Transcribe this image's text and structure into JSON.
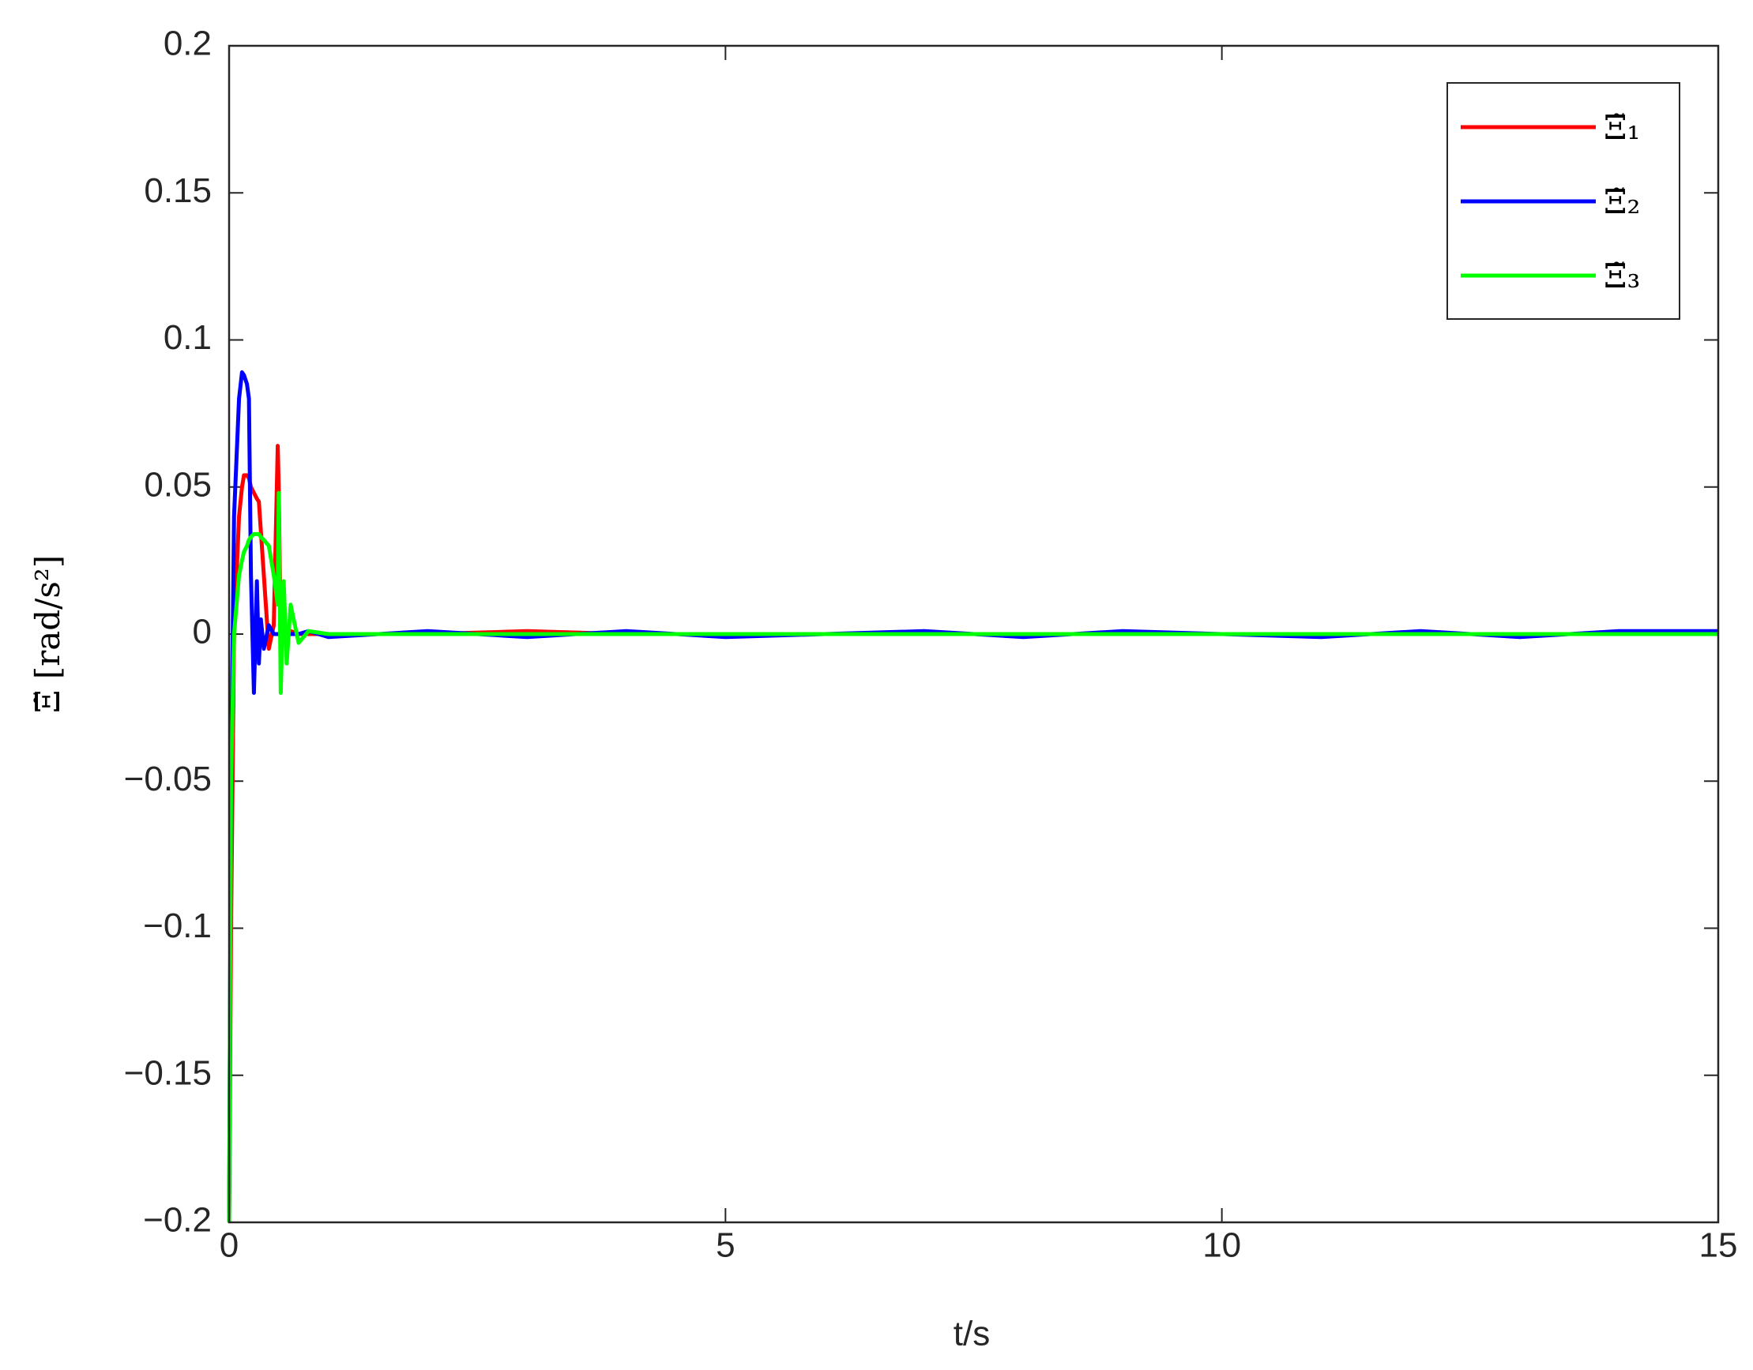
{
  "chart_data": {
    "type": "line",
    "xlabel": "t/s",
    "ylabel": "Ξ̃ [rad/s²]",
    "x": [
      0,
      0.02,
      0.05,
      0.1,
      0.13,
      0.15,
      0.18,
      0.2,
      0.22,
      0.25,
      0.28,
      0.3,
      0.32,
      0.35,
      0.4,
      0.45,
      0.49,
      0.5,
      0.52,
      0.55,
      0.58,
      0.62,
      0.7,
      0.8,
      1,
      2,
      3,
      4,
      5,
      6,
      7,
      8,
      9,
      10,
      11,
      12,
      13,
      14,
      15
    ],
    "series": [
      {
        "name": "Ξ̃₁",
        "color": "#ff0000",
        "values": [
          -0.2,
          -0.1,
          0,
          0.04,
          0.05,
          0.054,
          0.054,
          0.053,
          0.05,
          0.048,
          0.046,
          0.045,
          0.035,
          0.02,
          -0.005,
          0.003,
          0.064,
          0.05,
          0,
          0.002,
          -0.001,
          0.001,
          0,
          0,
          0,
          0,
          0.001,
          0,
          0,
          0,
          0,
          0,
          0,
          0,
          0,
          0,
          0,
          0,
          0
        ]
      },
      {
        "name": "Ξ̃₂",
        "color": "#0000ff",
        "values": [
          -0.2,
          -0.05,
          0.04,
          0.08,
          0.089,
          0.088,
          0.085,
          0.08,
          0.02,
          -0.02,
          0.018,
          -0.01,
          0.005,
          -0.005,
          0.003,
          0,
          0,
          0,
          0,
          0,
          0,
          0,
          0,
          0.001,
          -0.001,
          0.001,
          -0.001,
          0.001,
          -0.001,
          0,
          0.001,
          -0.001,
          0.001,
          0,
          -0.001,
          0.001,
          -0.001,
          0.001,
          0.001
        ]
      },
      {
        "name": "Ξ̃₃",
        "color": "#00ff00",
        "values": [
          -0.2,
          -0.05,
          0,
          0.02,
          0.025,
          0.028,
          0.03,
          0.032,
          0.033,
          0.034,
          0.034,
          0.034,
          0.033,
          0.032,
          0.03,
          0.02,
          0.01,
          0.048,
          -0.02,
          0.018,
          -0.01,
          0.01,
          -0.003,
          0.001,
          0,
          0,
          0,
          0,
          0,
          0,
          0,
          0,
          0,
          0,
          0,
          0,
          0,
          0,
          0
        ]
      }
    ],
    "xlim": [
      0,
      15
    ],
    "xticks": [
      0,
      5,
      10,
      15
    ],
    "ylim": [
      -0.2,
      0.2
    ],
    "yticks": [
      {
        "value": -0.2,
        "label": "−0.2"
      },
      {
        "value": -0.15,
        "label": "−0.15"
      },
      {
        "value": -0.1,
        "label": "−0.1"
      },
      {
        "value": -0.05,
        "label": "−0.05"
      },
      0,
      0.05,
      0.1,
      0.15,
      0.2
    ],
    "legend": "northeast"
  }
}
